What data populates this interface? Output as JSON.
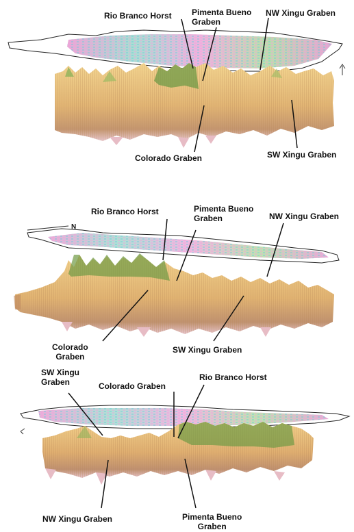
{
  "panel_1": {
    "labels": {
      "rio_branco": "Rio Branco Horst",
      "pimenta_line1": "Pimenta Bueno",
      "pimenta_line2": "Graben",
      "nw_xingu": "NW Xingu Graben",
      "colorado": "Colorado Graben",
      "sw_xingu": "SW Xingu Graben"
    }
  },
  "panel_2": {
    "north_marker": "N",
    "labels": {
      "rio_branco": "Rio Branco Horst",
      "pimenta_line1": "Pimenta Bueno",
      "pimenta_line2": "Graben",
      "nw_xingu": "NW Xingu Graben",
      "colorado_line1": "Colorado",
      "colorado_line2": "Graben",
      "sw_xingu": "SW Xingu Graben"
    }
  },
  "panel_3": {
    "labels": {
      "sw_xingu_line1": "SW Xingu",
      "sw_xingu_line2": "Graben",
      "colorado": "Colorado Graben",
      "rio_branco": "Rio Branco Horst",
      "nw_xingu": "NW Xingu Graben",
      "pimenta_line1": "Pimenta Bueno",
      "pimenta_line2": "Graben"
    }
  },
  "colors": {
    "terrain_light": "#f2d08a",
    "terrain_mid": "#e0b070",
    "terrain_dark": "#b98a5e",
    "terrain_base": "#e7c3c8",
    "ridge_green": "#6f9a45",
    "map_pink": "#e58ac8",
    "map_cyan": "#7fd6c8",
    "map_green": "#a8d68a"
  }
}
